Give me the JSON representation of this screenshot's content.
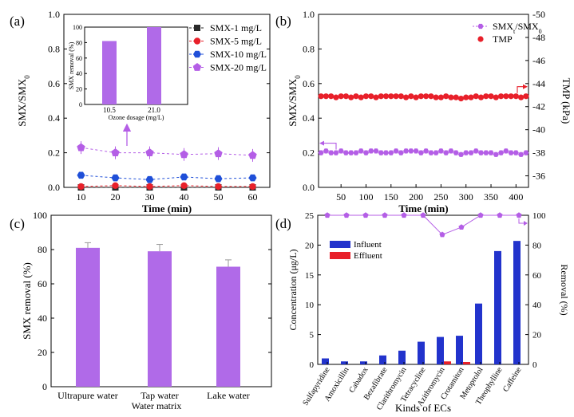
{
  "colors": {
    "black": "#2a2a2a",
    "red": "#e8202a",
    "blue": "#1f4fd8",
    "purple": "#b45ee6",
    "bar_purple": "#b06ae8",
    "navy": "#2233cc",
    "grid": "#000000"
  },
  "chart_data": [
    {
      "panel": "(a)",
      "type": "line",
      "xlabel": "Time (min)",
      "ylabel": "SMX/SMX",
      "ylabel_sub": "0",
      "x": [
        10,
        20,
        30,
        40,
        50,
        60
      ],
      "xlim": [
        5,
        65
      ],
      "ylim": [
        0,
        1.0
      ],
      "xticks": [
        "10",
        "20",
        "30",
        "40",
        "50",
        "60"
      ],
      "yticks": [
        "0.0",
        "0.2",
        "0.4",
        "0.6",
        "0.8",
        "1.0"
      ],
      "legend_position": "top-right",
      "series": [
        {
          "name": "SMX-1 mg/L",
          "marker": "square",
          "values": [
            0.0,
            0.0,
            0.0,
            0.0,
            0.0,
            0.0
          ]
        },
        {
          "name": "SMX-5 mg/L",
          "marker": "circle",
          "values": [
            0.005,
            0.01,
            0.005,
            0.01,
            0.005,
            0.005
          ]
        },
        {
          "name": "SMX-10 mg/L",
          "marker": "hexagon",
          "values": [
            0.07,
            0.055,
            0.045,
            0.06,
            0.05,
            0.055
          ]
        },
        {
          "name": "SMX-20 mg/L",
          "marker": "pentagon",
          "values": [
            0.23,
            0.2,
            0.2,
            0.19,
            0.195,
            0.185
          ]
        }
      ],
      "inset": {
        "type": "bar",
        "categories": [
          "10.5",
          "21.0"
        ],
        "values": [
          82,
          100
        ],
        "ylabel": "SMX removal (%)",
        "xlabel": "Ozone dosage (mg/L)",
        "ylim": [
          0,
          100
        ],
        "yticks": [
          "0",
          "20",
          "40",
          "60",
          "80",
          "100"
        ]
      }
    },
    {
      "panel": "(b)",
      "type": "scatter",
      "xlabel": "Time (min)",
      "ylabel": "SMX/SMX",
      "ylabel_sub": "0",
      "ylabel_right": "TMP (kPa)",
      "xlim": [
        5,
        425
      ],
      "ylim": [
        0,
        1.0
      ],
      "ylim_right": [
        -35,
        -50
      ],
      "xticks": [
        "50",
        "100",
        "150",
        "200",
        "250",
        "300",
        "350",
        "400"
      ],
      "yticks": [
        "0.0",
        "0.2",
        "0.4",
        "0.6",
        "0.8",
        "1.0"
      ],
      "yticks_right": [
        "-36",
        "-38",
        "-40",
        "-42",
        "-44",
        "-46",
        "-48",
        "-50"
      ],
      "legend_position": "top-right",
      "series": [
        {
          "name": "SMX/SMX0",
          "legend_main": "SMX",
          "legend_sub1": "t",
          "legend_mid": "/SMX",
          "legend_sub2": "0",
          "axis": "left",
          "x_start": 10,
          "x_step": 10,
          "values": [
            0.2,
            0.21,
            0.2,
            0.2,
            0.21,
            0.2,
            0.2,
            0.2,
            0.21,
            0.2,
            0.21,
            0.21,
            0.2,
            0.2,
            0.2,
            0.21,
            0.2,
            0.21,
            0.21,
            0.21,
            0.2,
            0.21,
            0.2,
            0.2,
            0.21,
            0.2,
            0.21,
            0.2,
            0.19,
            0.2,
            0.2,
            0.21,
            0.2,
            0.2,
            0.2,
            0.19,
            0.2,
            0.21,
            0.2,
            0.2,
            0.19,
            0.2
          ]
        },
        {
          "name": "TMP",
          "axis": "right",
          "x_start": 10,
          "x_step": 10,
          "values": [
            -42.9,
            -42.9,
            -42.9,
            -42.8,
            -42.9,
            -42.9,
            -42.8,
            -42.9,
            -42.8,
            -42.9,
            -42.9,
            -42.8,
            -42.9,
            -42.9,
            -42.9,
            -42.9,
            -42.9,
            -42.8,
            -42.9,
            -42.8,
            -42.9,
            -42.9,
            -42.9,
            -42.8,
            -42.8,
            -42.9,
            -42.8,
            -42.8,
            -42.7,
            -42.8,
            -42.8,
            -42.9,
            -42.8,
            -42.9,
            -42.9,
            -42.8,
            -42.9,
            -42.9,
            -42.9,
            -42.9,
            -42.8,
            -42.9
          ]
        }
      ]
    },
    {
      "panel": "(c)",
      "type": "bar",
      "xlabel": "Water matrix",
      "ylabel": "SMX removal (%)",
      "categories": [
        "Ultrapure water",
        "Tap water",
        "Lake water"
      ],
      "values": [
        81,
        79,
        70
      ],
      "errors": [
        3,
        4,
        4
      ],
      "ylim": [
        0,
        100
      ],
      "yticks": [
        "0",
        "20",
        "40",
        "60",
        "80",
        "100"
      ]
    },
    {
      "panel": "(d)",
      "type": "bar",
      "xlabel": "Kinds of ECs",
      "ylabel": "Concentration (μg/L)",
      "ylabel_right": "Removal (%)",
      "categories": [
        "Sulfapyridine",
        "Amoxicillin",
        "Cabadox",
        "Bezafibrate",
        "Clarithromycin",
        "Tetracycline",
        "Azithromycin",
        "Crotamiton",
        "Metoprolol",
        "Theophylline",
        "Caffeine"
      ],
      "ylim": [
        0,
        25
      ],
      "ylim_right": [
        0,
        100
      ],
      "yticks": [
        "0",
        "5",
        "10",
        "15",
        "20",
        "25"
      ],
      "yticks_right": [
        "0",
        "20",
        "40",
        "60",
        "80",
        "100"
      ],
      "legend_position": "top-left",
      "series": [
        {
          "name": "Influent",
          "values": [
            1.0,
            0.5,
            0.5,
            1.5,
            2.3,
            3.8,
            4.6,
            4.8,
            10.2,
            19.0,
            20.7
          ]
        },
        {
          "name": "Effluent",
          "values": [
            0,
            0,
            0,
            0,
            0,
            0,
            0.5,
            0.4,
            0,
            0,
            0
          ]
        },
        {
          "name": "Removal",
          "axis": "right",
          "values": [
            100,
            100,
            100,
            100,
            100,
            100,
            87,
            92,
            100,
            100,
            100
          ]
        }
      ]
    }
  ]
}
